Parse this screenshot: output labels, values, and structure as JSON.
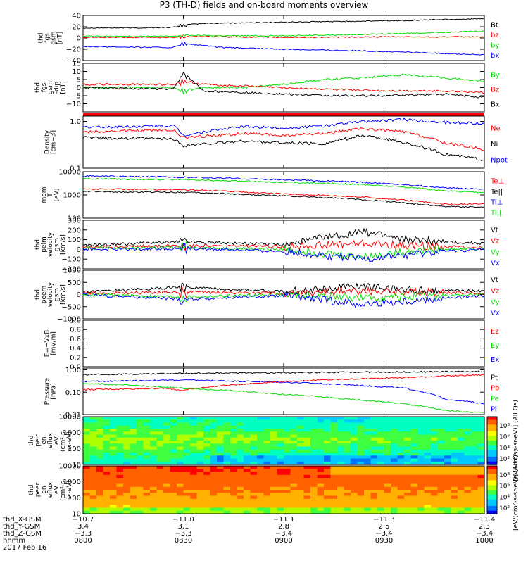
{
  "title": "P3 (TH-D) fields and on-board moments overview",
  "colors": {
    "black": "#000000",
    "red": "#ff0000",
    "green": "#00dd00",
    "blue": "#0000ff"
  },
  "chart_data": [
    {
      "id": "p1",
      "type": "line",
      "ylabel": [
        "thd",
        "fgs",
        "gsm",
        "[nT]"
      ],
      "ylim": [
        -40,
        40
      ],
      "yticks": [
        "40",
        "20",
        "0",
        "−20",
        "−40"
      ],
      "legend": [
        {
          "name": "Bt",
          "color": "black"
        },
        {
          "name": "bz",
          "color": "red"
        },
        {
          "name": "by",
          "color": "green"
        },
        {
          "name": "bx",
          "color": "blue"
        }
      ],
      "series": [
        {
          "name": "Bt",
          "color": "black",
          "x": [
            8.0,
            8.3,
            8.45,
            8.5,
            8.6,
            8.8,
            9.0,
            9.2,
            9.4,
            9.6,
            9.8,
            10.0
          ],
          "values": [
            18,
            18,
            19,
            23,
            26,
            27,
            28,
            29,
            30,
            31,
            33,
            34
          ]
        },
        {
          "name": "bz",
          "color": "red",
          "x": [
            8.0,
            8.45,
            8.5,
            8.7,
            9.0,
            9.5,
            10.0
          ],
          "values": [
            1,
            1,
            3,
            2,
            1,
            2,
            2
          ]
        },
        {
          "name": "by",
          "color": "green",
          "x": [
            8.0,
            8.45,
            8.5,
            8.7,
            9.0,
            9.5,
            9.8,
            10.0
          ],
          "values": [
            3,
            3,
            5,
            4,
            4,
            7,
            10,
            12
          ]
        },
        {
          "name": "bx",
          "color": "blue",
          "x": [
            8.0,
            8.45,
            8.5,
            8.7,
            9.0,
            9.3,
            9.6,
            10.0
          ],
          "values": [
            -15,
            -17,
            -10,
            -17,
            -20,
            -22,
            -25,
            -30
          ]
        }
      ]
    },
    {
      "id": "p2",
      "type": "line",
      "ylabel": [
        "thd",
        "fgs",
        "gsm",
        "-dip",
        "[nT]"
      ],
      "ylim": [
        -15,
        15
      ],
      "yticks": [
        "15",
        "10",
        "5",
        "0",
        "−5",
        "−10"
      ],
      "legend": [
        {
          "name": "By",
          "color": "green"
        },
        {
          "name": "Bz",
          "color": "red"
        },
        {
          "name": "Bx",
          "color": "black"
        }
      ],
      "series": [
        {
          "name": "By",
          "color": "green",
          "x": [
            8.0,
            8.45,
            8.5,
            8.6,
            8.8,
            9.0,
            9.2,
            9.4,
            9.6,
            9.8,
            10.0
          ],
          "values": [
            0,
            0,
            -2,
            0,
            0,
            2,
            5,
            6,
            8,
            6,
            4
          ]
        },
        {
          "name": "Bz",
          "color": "red",
          "x": [
            8.0,
            8.45,
            8.5,
            8.6,
            8.8,
            9.0,
            9.2,
            9.5,
            9.8,
            10.0
          ],
          "values": [
            2,
            2,
            4,
            2,
            1,
            0,
            -1,
            -2,
            -2,
            -3
          ]
        },
        {
          "name": "Bx",
          "color": "black",
          "x": [
            8.0,
            8.45,
            8.5,
            8.6,
            8.8,
            9.0,
            9.2,
            9.5,
            9.8,
            10.0
          ],
          "values": [
            0,
            -1,
            9,
            -2,
            -3,
            -4,
            -5,
            -5,
            -4,
            -6
          ]
        }
      ]
    },
    {
      "id": "p3",
      "type": "line",
      "scale": "log",
      "ylabel": [
        "Density",
        "[cm−3]"
      ],
      "ylim": [
        0.1,
        1.3
      ],
      "yticks": [
        "1.0",
        "0.1"
      ],
      "legend": [
        {
          "name": "Ne",
          "color": "red"
        },
        {
          "name": "Ni",
          "color": "black"
        },
        {
          "name": "Npot",
          "color": "blue"
        }
      ],
      "series": [
        {
          "name": "Npot",
          "color": "blue",
          "x": [
            8.0,
            8.45,
            8.5,
            8.8,
            9.0,
            9.2,
            9.4,
            9.6,
            9.8,
            10.0
          ],
          "values": [
            0.75,
            0.8,
            0.5,
            0.78,
            0.72,
            0.8,
            1.0,
            1.1,
            0.95,
            0.9
          ]
        },
        {
          "name": "Ne",
          "color": "red",
          "x": [
            8.0,
            8.45,
            8.5,
            8.8,
            9.0,
            9.2,
            9.4,
            9.6,
            9.8,
            10.0
          ],
          "values": [
            0.6,
            0.65,
            0.45,
            0.55,
            0.5,
            0.55,
            0.7,
            0.6,
            0.35,
            0.25
          ]
        },
        {
          "name": "Ni",
          "color": "black",
          "x": [
            8.0,
            8.45,
            8.5,
            8.8,
            9.0,
            9.2,
            9.4,
            9.6,
            9.8,
            10.0
          ],
          "values": [
            0.45,
            0.42,
            0.3,
            0.38,
            0.35,
            0.33,
            0.5,
            0.35,
            0.2,
            0.15
          ]
        }
      ]
    },
    {
      "id": "p4",
      "type": "line",
      "scale": "log",
      "ylabel": [
        "mom",
        "T",
        "[eV]"
      ],
      "ylim": [
        100,
        10000
      ],
      "yticks": [
        "10000",
        "1000",
        "100"
      ],
      "legend": [
        {
          "name": "Te⊥",
          "color": "red"
        },
        {
          "name": "Te||",
          "color": "black"
        },
        {
          "name": "Ti⊥",
          "color": "blue"
        },
        {
          "name": "Ti||",
          "color": "green"
        }
      ],
      "series": [
        {
          "name": "Ti⊥",
          "color": "blue",
          "x": [
            8.0,
            8.5,
            9.0,
            9.3,
            9.6,
            9.8,
            10.0
          ],
          "values": [
            6500,
            5800,
            4500,
            3800,
            2800,
            2000,
            1800
          ]
        },
        {
          "name": "Ti||",
          "color": "green",
          "x": [
            8.0,
            8.5,
            9.0,
            9.3,
            9.6,
            9.8,
            10.0
          ],
          "values": [
            5000,
            4500,
            3500,
            3000,
            2200,
            1500,
            1300
          ]
        },
        {
          "name": "Te⊥",
          "color": "red",
          "x": [
            8.0,
            8.5,
            9.0,
            9.3,
            9.6,
            9.8,
            10.0
          ],
          "values": [
            1800,
            1700,
            1100,
            900,
            600,
            400,
            400
          ]
        },
        {
          "name": "Te||",
          "color": "black",
          "x": [
            8.0,
            8.5,
            9.0,
            9.3,
            9.6,
            9.8,
            10.0
          ],
          "values": [
            1400,
            1300,
            900,
            700,
            450,
            320,
            300
          ]
        }
      ]
    },
    {
      "id": "p5",
      "type": "line",
      "ylabel": [
        "thd",
        "peim",
        "velocity",
        "gsm",
        "[km/s]"
      ],
      "ylim": [
        -200,
        300
      ],
      "yticks": [
        "300",
        "200",
        "100",
        "0",
        "−100",
        "−200"
      ],
      "legend": [
        {
          "name": "Vt",
          "color": "black"
        },
        {
          "name": "Vz",
          "color": "red"
        },
        {
          "name": "Vy",
          "color": "green"
        },
        {
          "name": "Vx",
          "color": "blue"
        }
      ],
      "series": [
        {
          "name": "Vt",
          "color": "black",
          "x": [
            8.0,
            8.5,
            9.0,
            9.2,
            9.4,
            9.5,
            9.6,
            9.8,
            10.0
          ],
          "values": [
            40,
            80,
            50,
            120,
            180,
            150,
            100,
            80,
            60
          ]
        },
        {
          "name": "Vz",
          "color": "red",
          "x": [
            8.0,
            8.5,
            9.0,
            9.4,
            9.6,
            9.8,
            10.0
          ],
          "values": [
            20,
            40,
            30,
            60,
            40,
            30,
            20
          ]
        },
        {
          "name": "Vy",
          "color": "green",
          "x": [
            8.0,
            8.5,
            9.0,
            9.4,
            9.6,
            9.8,
            10.0
          ],
          "values": [
            10,
            20,
            0,
            -80,
            -20,
            0,
            10
          ]
        },
        {
          "name": "Vx",
          "color": "blue",
          "x": [
            8.0,
            8.5,
            9.0,
            9.4,
            9.6,
            9.8,
            10.0
          ],
          "values": [
            0,
            10,
            -20,
            -100,
            -60,
            -20,
            0
          ]
        }
      ]
    },
    {
      "id": "p6",
      "type": "line",
      "ylabel": [
        "thd",
        "peem",
        "velocity",
        "gsm",
        "[km/s]"
      ],
      "ylim": [
        -1000,
        1000
      ],
      "yticks": [
        "1000",
        "500",
        "0",
        "−500",
        "−1000"
      ],
      "legend": [
        {
          "name": "Vt",
          "color": "black"
        },
        {
          "name": "Vz",
          "color": "red"
        },
        {
          "name": "Vy",
          "color": "green"
        },
        {
          "name": "Vx",
          "color": "blue"
        }
      ],
      "series": [
        {
          "name": "Vt",
          "color": "black",
          "x": [
            8.0,
            8.5,
            9.0,
            9.4,
            9.6,
            10.0
          ],
          "values": [
            100,
            300,
            120,
            350,
            200,
            150
          ]
        },
        {
          "name": "Vz",
          "color": "red",
          "x": [
            8.0,
            8.5,
            9.0,
            9.4,
            10.0
          ],
          "values": [
            50,
            100,
            60,
            150,
            50
          ]
        },
        {
          "name": "Vy",
          "color": "green",
          "x": [
            8.0,
            8.5,
            9.0,
            9.4,
            10.0
          ],
          "values": [
            0,
            -100,
            0,
            -150,
            0
          ]
        },
        {
          "name": "Vx",
          "color": "blue",
          "x": [
            8.0,
            8.5,
            9.0,
            9.4,
            10.0
          ],
          "values": [
            0,
            -200,
            -50,
            -400,
            -50
          ]
        }
      ]
    },
    {
      "id": "p7",
      "type": "line",
      "ylabel": [
        "E=−VxB",
        "[mV/m]"
      ],
      "ylim": [
        0,
        1
      ],
      "yticks": [
        "1.0",
        "0.8",
        "0.6",
        "0.4",
        "0.2",
        "0.0"
      ],
      "legend": [
        {
          "name": "Ez",
          "color": "red"
        },
        {
          "name": "Ey",
          "color": "green"
        },
        {
          "name": "Ex",
          "color": "blue"
        }
      ],
      "series": []
    },
    {
      "id": "p8",
      "type": "line",
      "scale": "log",
      "ylabel": [
        "Pressure",
        "[nPa]"
      ],
      "ylim": [
        0.01,
        1.2
      ],
      "yticks": [
        "1.00",
        "0.10",
        "0.01"
      ],
      "legend": [
        {
          "name": "Pt",
          "color": "black"
        },
        {
          "name": "Pb",
          "color": "red"
        },
        {
          "name": "Pe",
          "color": "green"
        },
        {
          "name": "Pi",
          "color": "blue"
        }
      ],
      "series": [
        {
          "name": "Pt",
          "color": "black",
          "x": [
            8.0,
            8.5,
            9.0,
            9.5,
            10.0
          ],
          "values": [
            0.6,
            0.7,
            0.75,
            0.8,
            0.85
          ]
        },
        {
          "name": "Pi",
          "color": "blue",
          "x": [
            8.0,
            8.5,
            9.0,
            9.3,
            9.6,
            9.8,
            10.0
          ],
          "values": [
            0.3,
            0.35,
            0.28,
            0.22,
            0.15,
            0.05,
            0.03
          ]
        },
        {
          "name": "Pb",
          "color": "red",
          "x": [
            8.0,
            8.4,
            8.5,
            8.7,
            9.0,
            9.3,
            9.6,
            10.0
          ],
          "values": [
            0.13,
            0.15,
            0.12,
            0.2,
            0.3,
            0.38,
            0.45,
            0.6
          ]
        },
        {
          "name": "Pe",
          "color": "green",
          "x": [
            8.0,
            8.5,
            9.0,
            9.3,
            9.6,
            9.8,
            10.0
          ],
          "values": [
            0.25,
            0.15,
            0.08,
            0.05,
            0.03,
            0.015,
            0.012
          ]
        }
      ]
    },
    {
      "id": "p9",
      "type": "heatmap",
      "scale": "log",
      "ylabel": [
        "thd",
        "peir",
        "en",
        "eflux",
        "eV",
        "(cm²-s-",
        "sr-eV)"
      ],
      "ylim": [
        10,
        10000
      ],
      "yticks": [
        "10000",
        "1000",
        "100",
        "10"
      ],
      "colorbar_ticks": [
        "10⁸",
        "10⁶",
        "10⁴",
        "10²"
      ],
      "colorbar_label": "[eV/(cm²-s-sr-eV)] (All Qs)"
    },
    {
      "id": "p10",
      "type": "heatmap",
      "scale": "log",
      "ylabel": [
        "thd",
        "peer",
        "en",
        "eflux",
        "eV",
        "(cm²-s-",
        "sr-eV)"
      ],
      "ylim": [
        10,
        10000
      ],
      "yticks": [
        "10000",
        "1000",
        "100",
        "10"
      ],
      "colorbar_ticks": [
        "10⁸",
        "10⁶",
        "10⁴",
        "10²"
      ],
      "colorbar_label": "[eV/(cm²-s-sr-eV)] (All Qs)"
    }
  ],
  "xaxis": {
    "rows_labels": [
      "thd_X-GSM",
      "thd_Y-GSM",
      "thd_Z-GSM",
      "hhmm",
      "2017 Feb 16"
    ],
    "ticks": [
      {
        "x": 8.0,
        "vals": [
          "−10.7",
          "3.4",
          "−3.3",
          "0800"
        ]
      },
      {
        "x": 8.5,
        "vals": [
          "−11.0",
          "3.1",
          "−3.3",
          "0830"
        ]
      },
      {
        "x": 9.0,
        "vals": [
          "−11.1",
          "2.8",
          "−3.4",
          "0900"
        ]
      },
      {
        "x": 9.5,
        "vals": [
          "−11.3",
          "2.5",
          "−3.4",
          "0930"
        ]
      },
      {
        "x": 10.0,
        "vals": [
          "−11.4",
          "2.3",
          "−3.4",
          "1000"
        ]
      }
    ]
  }
}
